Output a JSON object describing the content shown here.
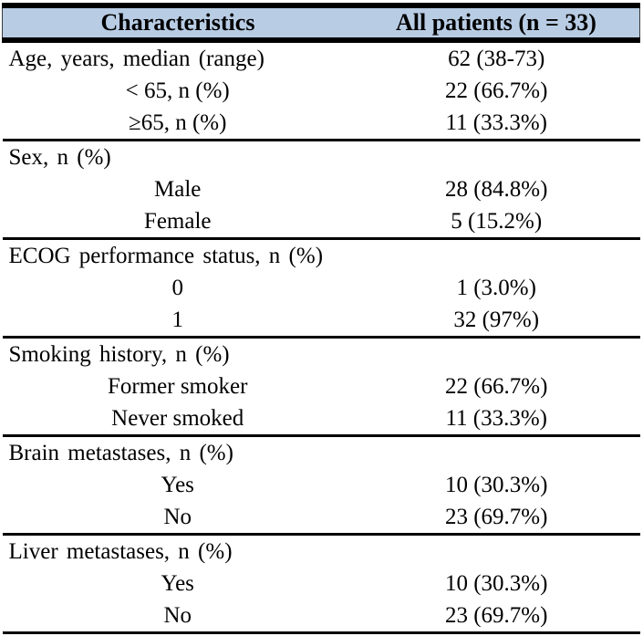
{
  "table": {
    "header": {
      "characteristics": "Characteristics",
      "all_patients": "All patients (n = 33)"
    },
    "style": {
      "header_bg": "#b8cce4",
      "border_color": "#000000",
      "text_color": "#000000"
    },
    "sections": [
      {
        "rows": [
          {
            "label": "Age, years, median (range)",
            "value": "62 (38-73)",
            "indent": false
          },
          {
            "label": "< 65, n (%)",
            "value": "22 (66.7%)",
            "indent": true
          },
          {
            "label": "≥65, n (%)",
            "value": "11 (33.3%)",
            "indent": true
          }
        ]
      },
      {
        "rows": [
          {
            "label": "Sex, n (%)",
            "value": "",
            "indent": false
          },
          {
            "label": "Male",
            "value": "28 (84.8%)",
            "indent": true
          },
          {
            "label": "Female",
            "value": "5 (15.2%)",
            "indent": true
          }
        ]
      },
      {
        "rows": [
          {
            "label": "ECOG performance status, n (%)",
            "value": "",
            "indent": false
          },
          {
            "label": "0",
            "value": "1 (3.0%)",
            "indent": true
          },
          {
            "label": "1",
            "value": "32 (97%)",
            "indent": true
          }
        ]
      },
      {
        "rows": [
          {
            "label": "Smoking history, n (%)",
            "value": "",
            "indent": false
          },
          {
            "label": "Former smoker",
            "value": "22 (66.7%)",
            "indent": true
          },
          {
            "label": "Never smoked",
            "value": "11 (33.3%)",
            "indent": true
          }
        ]
      },
      {
        "rows": [
          {
            "label": "Brain metastases, n (%)",
            "value": "",
            "indent": false
          },
          {
            "label": "Yes",
            "value": "10 (30.3%)",
            "indent": true
          },
          {
            "label": "No",
            "value": "23 (69.7%)",
            "indent": true
          }
        ]
      },
      {
        "rows": [
          {
            "label": "Liver metastases, n (%)",
            "value": "",
            "indent": false
          },
          {
            "label": "Yes",
            "value": "10 (30.3%)",
            "indent": true
          },
          {
            "label": "No",
            "value": "23 (69.7%)",
            "indent": true
          }
        ]
      }
    ]
  }
}
